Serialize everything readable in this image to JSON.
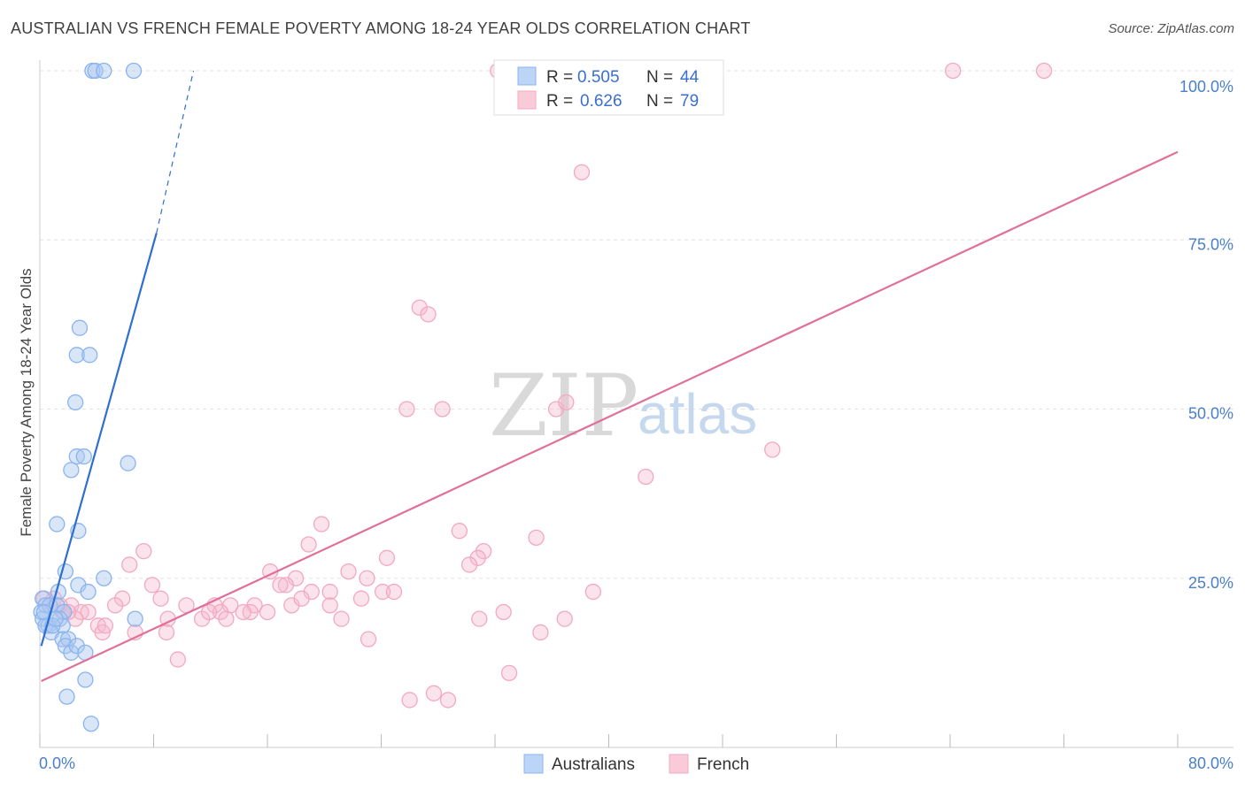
{
  "title": "AUSTRALIAN VS FRENCH FEMALE POVERTY AMONG 18-24 YEAR OLDS CORRELATION CHART",
  "source": "Source: ZipAtlas.com",
  "watermark": {
    "zip": "ZIP",
    "atlas": "atlas"
  },
  "stats": [
    {
      "r_label": "R =",
      "r": "0.505",
      "n_label": "N =",
      "n": "44",
      "color": "#8ab4f0"
    },
    {
      "r_label": "R =",
      "r": "0.626",
      "n_label": "N =",
      "n": "79",
      "color": "#f4a8c0"
    }
  ],
  "legend": [
    {
      "name": "Australians",
      "color": "#8ab4f0"
    },
    {
      "name": "French",
      "color": "#f4a8c0"
    }
  ],
  "chart_data": {
    "type": "scatter",
    "title": "AUSTRALIAN VS FRENCH FEMALE POVERTY AMONG 18-24 YEAR OLDS CORRELATION CHART",
    "xlabel": "",
    "ylabel": "Female Poverty Among 18-24 Year Olds",
    "xlim": [
      0,
      80
    ],
    "ylim": [
      0,
      100
    ],
    "x_tick_labels": [
      "0.0%",
      "80.0%"
    ],
    "y_tick_values": [
      25,
      50,
      75,
      100
    ],
    "y_tick_labels": [
      "25.0%",
      "50.0%",
      "75.0%",
      "100.0%"
    ],
    "grid": true,
    "legend_position": "bottom-center",
    "series": [
      {
        "name": "Australians",
        "color": "#8ab4f0",
        "line_color": "#2f6fcf",
        "trend": {
          "x0": 0.1,
          "y0": 15,
          "x1": 8.2,
          "y1": 76,
          "dash_x1": 10.8,
          "dash_y1": 100
        },
        "points": [
          [
            3.7,
            100
          ],
          [
            3.9,
            100
          ],
          [
            4.5,
            100
          ],
          [
            6.6,
            100
          ],
          [
            2.8,
            62
          ],
          [
            2.6,
            58
          ],
          [
            3.5,
            58
          ],
          [
            2.5,
            51
          ],
          [
            2.6,
            43
          ],
          [
            3.1,
            43
          ],
          [
            6.2,
            42
          ],
          [
            2.2,
            41
          ],
          [
            1.2,
            33
          ],
          [
            2.7,
            32
          ],
          [
            1.8,
            26
          ],
          [
            4.5,
            25
          ],
          [
            2.7,
            24
          ],
          [
            1.3,
            23
          ],
          [
            3.4,
            23
          ],
          [
            0.2,
            22
          ],
          [
            0.4,
            21
          ],
          [
            0.7,
            21
          ],
          [
            1.2,
            21
          ],
          [
            1.7,
            20
          ],
          [
            0.1,
            20
          ],
          [
            0.2,
            19
          ],
          [
            1.4,
            19
          ],
          [
            6.7,
            19
          ],
          [
            0.6,
            18
          ],
          [
            1.6,
            18
          ],
          [
            0.4,
            18
          ],
          [
            0.8,
            17
          ],
          [
            0.9,
            18
          ],
          [
            1.1,
            19
          ],
          [
            1.6,
            16
          ],
          [
            2.0,
            16
          ],
          [
            1.8,
            15
          ],
          [
            2.2,
            14
          ],
          [
            2.6,
            15
          ],
          [
            3.2,
            14
          ],
          [
            3.2,
            10
          ],
          [
            1.9,
            7.5
          ],
          [
            3.6,
            3.5
          ],
          [
            0.3,
            20
          ]
        ]
      },
      {
        "name": "French",
        "color": "#f4a8c0",
        "line_color": "#e0709a",
        "trend": {
          "x0": 0.1,
          "y0": 9.8,
          "x1": 80,
          "y1": 88
        },
        "points": [
          [
            32.2,
            100
          ],
          [
            42.0,
            100
          ],
          [
            64.2,
            100
          ],
          [
            70.6,
            100
          ],
          [
            38.1,
            85
          ],
          [
            26.7,
            65
          ],
          [
            27.3,
            64
          ],
          [
            25.8,
            50
          ],
          [
            28.3,
            50
          ],
          [
            36.3,
            50
          ],
          [
            37.0,
            51
          ],
          [
            51.5,
            44
          ],
          [
            42.6,
            40
          ],
          [
            19.8,
            33
          ],
          [
            18.9,
            30
          ],
          [
            29.5,
            32
          ],
          [
            34.9,
            31
          ],
          [
            31.2,
            29
          ],
          [
            30.8,
            28
          ],
          [
            30.2,
            27
          ],
          [
            24.4,
            28
          ],
          [
            7.3,
            29
          ],
          [
            6.3,
            27
          ],
          [
            16.2,
            26
          ],
          [
            21.7,
            26
          ],
          [
            18.0,
            25
          ],
          [
            17.3,
            24
          ],
          [
            23.0,
            25
          ],
          [
            16.9,
            24
          ],
          [
            7.9,
            24
          ],
          [
            19.1,
            23
          ],
          [
            20.4,
            23
          ],
          [
            22.6,
            22
          ],
          [
            24.1,
            23
          ],
          [
            24.9,
            23
          ],
          [
            38.9,
            23
          ],
          [
            5.8,
            22
          ],
          [
            8.5,
            22
          ],
          [
            10.3,
            21
          ],
          [
            12.3,
            21
          ],
          [
            13.4,
            21
          ],
          [
            15.1,
            21
          ],
          [
            14.8,
            20
          ],
          [
            20.4,
            21
          ],
          [
            12.7,
            20
          ],
          [
            14.3,
            20
          ],
          [
            16.0,
            20
          ],
          [
            17.7,
            21
          ],
          [
            21.2,
            19
          ],
          [
            32.6,
            20
          ],
          [
            1.6,
            20
          ],
          [
            2.2,
            21
          ],
          [
            2.9,
            20
          ],
          [
            3.4,
            20
          ],
          [
            2.5,
            19
          ],
          [
            1.0,
            22
          ],
          [
            5.3,
            21
          ],
          [
            11.4,
            19
          ],
          [
            13.1,
            19
          ],
          [
            30.9,
            19
          ],
          [
            36.9,
            19
          ],
          [
            9.0,
            19
          ],
          [
            4.1,
            18
          ],
          [
            4.4,
            17
          ],
          [
            6.7,
            17
          ],
          [
            8.9,
            17
          ],
          [
            35.2,
            17
          ],
          [
            23.1,
            16
          ],
          [
            9.7,
            13
          ],
          [
            33.0,
            11
          ],
          [
            26.0,
            7
          ],
          [
            27.7,
            8
          ],
          [
            28.7,
            7
          ],
          [
            0.3,
            22
          ],
          [
            1.4,
            21
          ],
          [
            2.0,
            20
          ],
          [
            4.6,
            18
          ],
          [
            11.9,
            20
          ],
          [
            18.4,
            22
          ]
        ]
      }
    ]
  }
}
